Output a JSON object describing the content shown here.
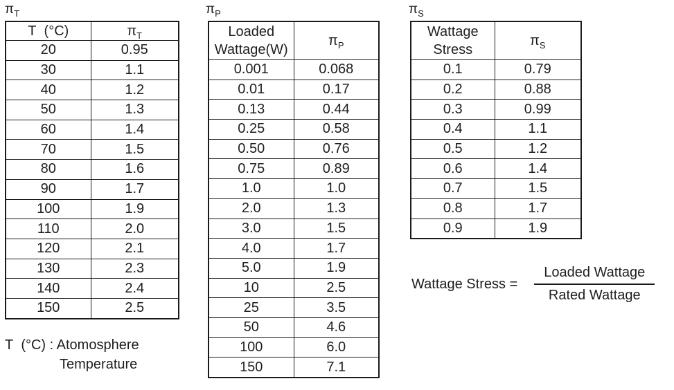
{
  "page": {
    "background": "#ffffff",
    "text_color": "#1e1e1e",
    "border_color": "#1a1a1a"
  },
  "tables": [
    {
      "title": {
        "base": "π",
        "sub": "T"
      },
      "col1_header": "T  (°C)",
      "col2_header": {
        "base": "π",
        "sub": "T"
      },
      "rows": [
        [
          "20",
          "0.95"
        ],
        [
          "30",
          "1.1"
        ],
        [
          "40",
          "1.2"
        ],
        [
          "50",
          "1.3"
        ],
        [
          "60",
          "1.4"
        ],
        [
          "70",
          "1.5"
        ],
        [
          "80",
          "1.6"
        ],
        [
          "90",
          "1.7"
        ],
        [
          "100",
          "1.9"
        ],
        [
          "110",
          "2.0"
        ],
        [
          "120",
          "2.1"
        ],
        [
          "130",
          "2.3"
        ],
        [
          "140",
          "2.4"
        ],
        [
          "150",
          "2.5"
        ]
      ]
    },
    {
      "title": {
        "base": "π",
        "sub": "P"
      },
      "col1_header": "Loaded\nWattage(W)",
      "col2_header": {
        "base": "π",
        "sub": "P"
      },
      "rows": [
        [
          "0.001",
          "0.068"
        ],
        [
          "0.01",
          "0.17"
        ],
        [
          "0.13",
          "0.44"
        ],
        [
          "0.25",
          "0.58"
        ],
        [
          "0.50",
          "0.76"
        ],
        [
          "0.75",
          "0.89"
        ],
        [
          "1.0",
          "1.0"
        ],
        [
          "2.0",
          "1.3"
        ],
        [
          "3.0",
          "1.5"
        ],
        [
          "4.0",
          "1.7"
        ],
        [
          "5.0",
          "1.9"
        ],
        [
          "10",
          "2.5"
        ],
        [
          "25",
          "3.5"
        ],
        [
          "50",
          "4.6"
        ],
        [
          "100",
          "6.0"
        ],
        [
          "150",
          "7.1"
        ]
      ]
    },
    {
      "title": {
        "base": "π",
        "sub": "S"
      },
      "col1_header": "Wattage\nStress",
      "col2_header": {
        "base": "π",
        "sub": "S"
      },
      "rows": [
        [
          "0.1",
          "0.79"
        ],
        [
          "0.2",
          "0.88"
        ],
        [
          "0.3",
          "0.99"
        ],
        [
          "0.4",
          "1.1"
        ],
        [
          "0.5",
          "1.2"
        ],
        [
          "0.6",
          "1.4"
        ],
        [
          "0.7",
          "1.5"
        ],
        [
          "0.8",
          "1.7"
        ],
        [
          "0.9",
          "1.9"
        ]
      ]
    }
  ],
  "note": {
    "line1": "T  (°C) : Atomosphere",
    "line2": "Temperature"
  },
  "formula": {
    "lhs": "Wattage Stress =",
    "numerator": "Loaded Wattage",
    "denominator": "Rated Wattage"
  }
}
